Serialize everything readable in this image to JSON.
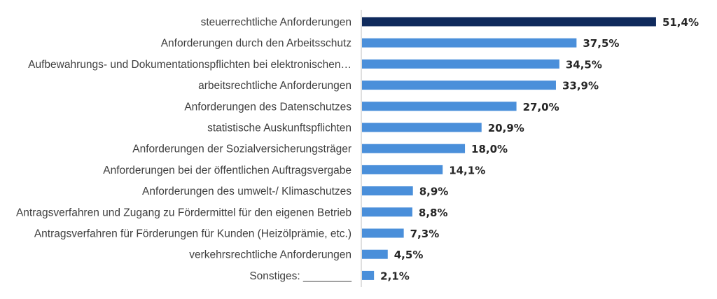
{
  "colors": {
    "highlight_bar": "#0f2a5c",
    "bar": "#4a8fda",
    "axis": "#bfbfbf",
    "label": "#404040",
    "value_label": "#262626"
  },
  "chart_data": {
    "type": "bar",
    "orientation": "horizontal",
    "title": "",
    "xlabel": "",
    "ylabel": "",
    "xlim": [
      0,
      56
    ],
    "grid": false,
    "legend": "none",
    "highlight_index": 0,
    "categories": [
      "steuerrechtliche Anforderungen",
      "Anforderungen durch den Arbeitsschutz",
      "Aufbewahrungs- und Dokumentationspflichten bei elektronischen…",
      "arbeitsrechtliche Anforderungen",
      "Anforderungen des Datenschutzes",
      "statistische Auskunftspflichten",
      "Anforderungen der Sozialversicherungsträger",
      "Anforderungen bei der öffentlichen Auftragsvergabe",
      "Anforderungen des umwelt-/ Klimaschutzes",
      "Antragsverfahren und Zugang zu Fördermittel für den eigenen Betrieb",
      "Antragsverfahren für Förderungen für Kunden (Heizölprämie, etc.)",
      "verkehrsrechtliche Anforderungen",
      "Sonstiges: ________"
    ],
    "values": [
      51.4,
      37.5,
      34.5,
      33.9,
      27.0,
      20.9,
      18.0,
      14.1,
      8.9,
      8.8,
      7.3,
      4.5,
      2.1
    ],
    "value_labels": [
      "51,4%",
      "37,5%",
      "34,5%",
      "33,9%",
      "27,0%",
      "20,9%",
      "18,0%",
      "14,1%",
      "8,9%",
      "8,8%",
      "7,3%",
      "4,5%",
      "2,1%"
    ]
  }
}
